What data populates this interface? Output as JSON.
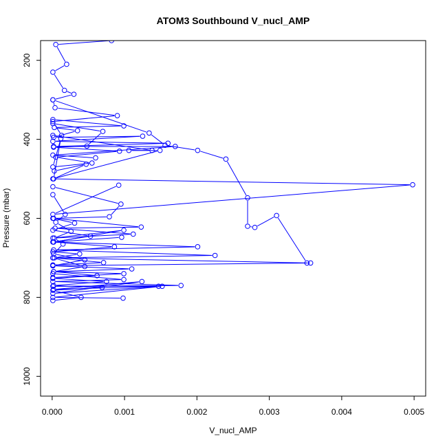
{
  "chart_data": {
    "type": "line",
    "title": "ATOM3 Southbound V_nucl_AMP",
    "xlabel": "V_nucl_AMP",
    "ylabel": "Pressure (mbar)",
    "xlim": [
      -0.00016,
      0.00516
    ],
    "ylim": [
      1050,
      150
    ],
    "y_reversed": true,
    "grid": false,
    "line_color": "#0000ff",
    "marker": "open-circle",
    "x_ticks": [
      0.0,
      0.001,
      0.002,
      0.003,
      0.004,
      0.005
    ],
    "x_tick_labels": [
      "0.000",
      "0.001",
      "0.002",
      "0.003",
      "0.004",
      "0.005"
    ],
    "y_ticks": [
      200,
      400,
      600,
      800,
      1000
    ],
    "y_tick_labels": [
      "200",
      "400",
      "600",
      "800",
      "1000"
    ],
    "series": [
      {
        "x": [
          0.00082,
          5e-05,
          0.0002,
          1e-05,
          0.00017,
          0.0003,
          1e-05,
          4e-05,
          0.0009,
          1e-05,
          0.00013
        ],
        "y": [
          150,
          160,
          210,
          230,
          276,
          286,
          300,
          320,
          340,
          355,
          390
        ]
      },
      {
        "x": [
          1e-05,
          0.00099,
          3e-05,
          0.00035,
          2e-05,
          0.00125,
          1e-05,
          0.0016,
          2e-05,
          0.0017,
          1e-05,
          0.0006
        ],
        "y": [
          350,
          366,
          370,
          378,
          395,
          392,
          405,
          410,
          418,
          418,
          440,
          447
        ]
      },
      {
        "x": [
          1e-05,
          0.0007,
          0.00048,
          2e-05,
          0.00093,
          5e-05,
          0.00055,
          1e-05,
          0.00012,
          2e-05,
          0.00047,
          3e-05
        ],
        "y": [
          360,
          380,
          417,
          420,
          430,
          445,
          460,
          470,
          398,
          500,
          463,
          480
        ]
      },
      {
        "x": [
          1e-05,
          0.00134,
          0.00156,
          0.00201,
          0.0024,
          0.0027,
          0.0027,
          0.0028,
          0.0031,
          0.00352
        ],
        "y": [
          300,
          384,
          415,
          428,
          450,
          548,
          620,
          623,
          593,
          713
        ]
      },
      {
        "x": [
          1e-05,
          0.00138,
          0.00106,
          0.00149,
          1e-05,
          0.00498,
          1e-05,
          0.00092
        ],
        "y": [
          390,
          428,
          428,
          428,
          500,
          515,
          590,
          516
        ]
      },
      {
        "x": [
          1e-05,
          0.00095,
          0.00079,
          2e-05,
          0.00123,
          4e-05,
          0.00112,
          1e-05,
          0.00099,
          2e-05,
          0.00096
        ],
        "y": [
          520,
          564,
          596,
          600,
          622,
          625,
          640,
          650,
          630,
          660,
          648
        ]
      },
      {
        "x": [
          1e-05,
          0.00201,
          2e-05,
          0.00225,
          1e-05,
          0.00357,
          1e-05,
          0.0011,
          2e-05,
          0.00099,
          1e-05
        ],
        "y": [
          660,
          672,
          680,
          694,
          700,
          713,
          720,
          728,
          735,
          740,
          750
        ]
      },
      {
        "x": [
          1e-05,
          0.00099,
          1e-05,
          0.00178,
          1e-05,
          0.00147,
          2e-05,
          0.00124,
          1e-05,
          0.00152,
          1e-05,
          0.00098
        ],
        "y": [
          740,
          755,
          760,
          770,
          772,
          772,
          780,
          760,
          790,
          772,
          800,
          802
        ]
      },
      {
        "x": [
          1e-05,
          0.00045,
          2e-05,
          0.00062,
          1e-05,
          0.00075,
          2e-05,
          0.00069,
          1e-05,
          0.0004,
          1e-05
        ],
        "y": [
          700,
          722,
          735,
          745,
          752,
          760,
          770,
          775,
          782,
          800,
          808
        ]
      },
      {
        "x": [
          1e-05,
          0.00031,
          1e-05,
          0.00053,
          2e-05,
          0.00086,
          1e-05,
          0.00038,
          3e-05,
          0.00071,
          1e-05
        ],
        "y": [
          600,
          612,
          630,
          645,
          660,
          672,
          685,
          690,
          700,
          712,
          718
        ]
      },
      {
        "x": [
          1e-05,
          0.00018,
          5e-05,
          0.00026,
          3e-05,
          0.00015,
          2e-05,
          0.00045,
          1e-05
        ],
        "y": [
          540,
          590,
          610,
          633,
          650,
          665,
          690,
          705,
          720
        ]
      }
    ]
  }
}
